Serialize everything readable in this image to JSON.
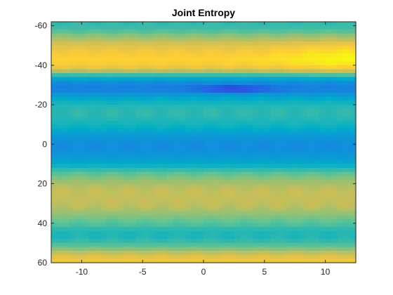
{
  "chart_data": {
    "type": "heatmap",
    "title": "Joint Entropy",
    "xlabel": "",
    "ylabel": "",
    "xlim": [
      -12.5,
      12.5
    ],
    "ylim": [
      -62,
      60
    ],
    "y_direction": "reversed",
    "grid": false,
    "colormap": "parula",
    "x_ticks": [
      -10,
      -5,
      0,
      5,
      10
    ],
    "y_ticks": [
      -60,
      -40,
      -20,
      0,
      20,
      40,
      60
    ],
    "x_tick_labels": [
      "-10",
      "-5",
      "0",
      "5",
      "10"
    ],
    "y_tick_labels": [
      "-60",
      "-40",
      "-20",
      "0",
      "20",
      "40",
      "60"
    ],
    "x_range": [
      -12.5,
      12.5
    ],
    "y_range": [
      -62,
      60
    ],
    "y_values": [
      -62,
      -58,
      -54,
      -50,
      -46,
      -42,
      -38,
      -34,
      -31,
      -28,
      -26,
      -24,
      -20,
      -16,
      -12,
      -8,
      -4,
      0,
      4,
      8,
      12,
      16,
      20,
      24,
      28,
      32,
      36,
      40,
      44,
      48,
      52,
      56,
      60
    ],
    "profile": [
      0.52,
      0.55,
      0.68,
      0.8,
      0.86,
      0.9,
      0.8,
      0.45,
      0.3,
      0.25,
      0.3,
      0.4,
      0.5,
      0.52,
      0.5,
      0.45,
      0.35,
      0.3,
      0.32,
      0.38,
      0.5,
      0.62,
      0.7,
      0.74,
      0.74,
      0.72,
      0.65,
      0.58,
      0.5,
      0.5,
      0.6,
      0.78,
      0.86
    ],
    "features": {
      "dark_streak": {
        "x_center": 2.5,
        "x_width": 3.0,
        "y_center": -28,
        "y_width": 1.5,
        "depth": 0.22
      },
      "upper_right_brightening": {
        "x_center": 12,
        "x_width": 6,
        "y_center": -44,
        "y_width": 8,
        "amount": 0.1
      }
    },
    "note_scale": "relative colormap level 0 (dark blue) to 1 (yellow); no colorbar shown"
  }
}
